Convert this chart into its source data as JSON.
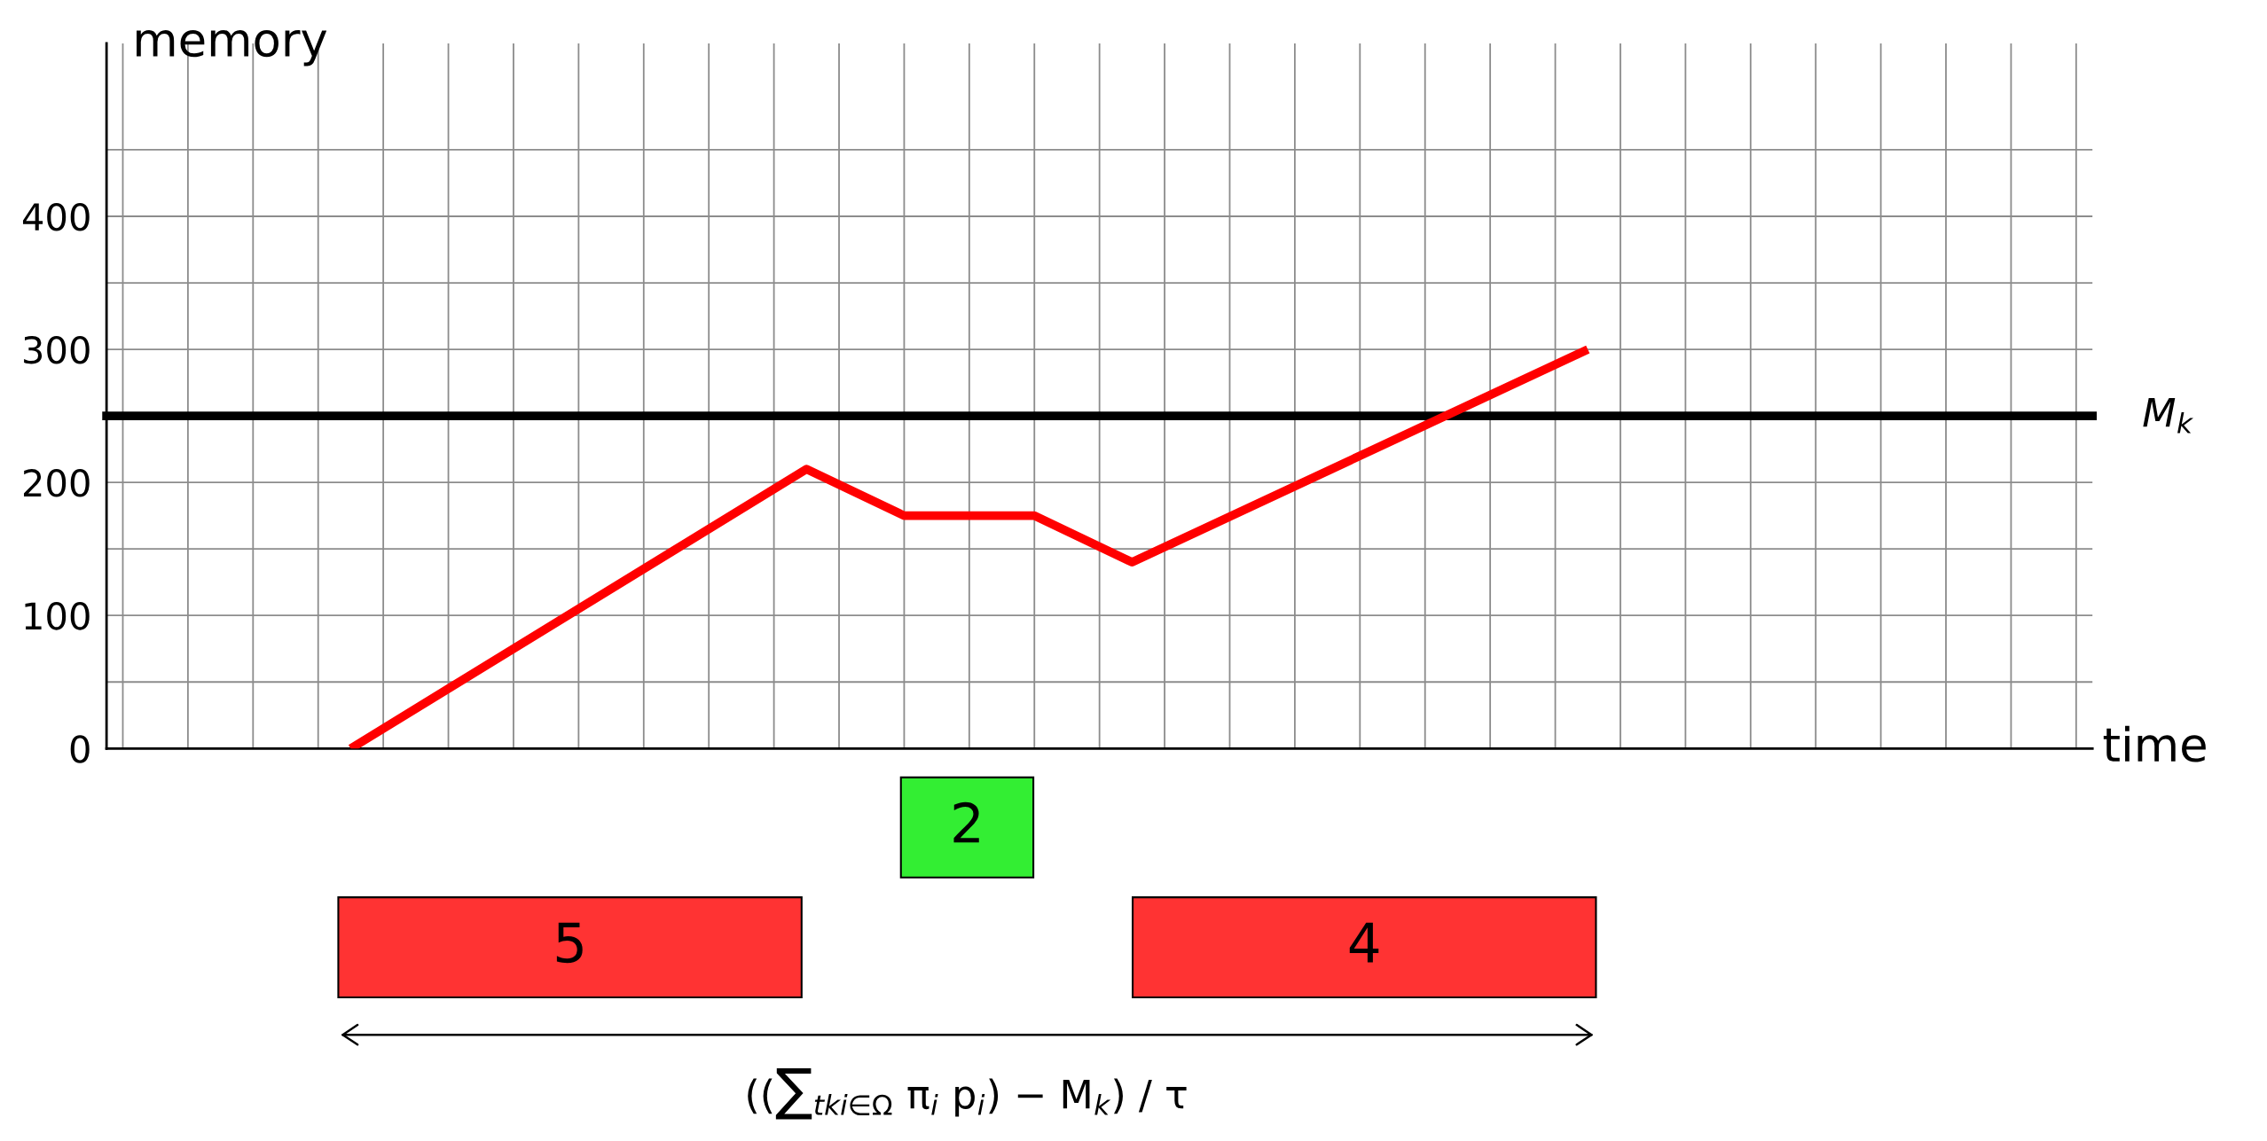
{
  "chart_data": {
    "type": "line",
    "xlabel": "time",
    "ylabel": "memory",
    "categories": [
      null,
      null,
      null,
      null,
      null,
      null,
      null,
      null,
      null,
      null,
      null,
      null,
      null,
      null,
      null,
      null,
      null,
      null,
      null,
      null,
      null,
      null,
      null,
      null,
      null,
      null,
      null,
      null,
      null,
      null,
      null,
      null,
      null,
      null,
      null,
      null,
      null,
      null,
      null,
      null,
      null,
      null,
      null,
      null,
      null,
      null,
      null,
      null,
      null,
      null,
      null,
      null,
      null,
      null,
      null,
      null,
      null,
      null,
      null,
      null,
      null
    ],
    "series": [
      {
        "color": "#ff0000",
        "values": [
          null,
          null,
          null,
          null,
          null,
          null,
          null,
          0,
          null,
          null,
          null,
          null,
          null,
          null,
          null,
          null,
          null,
          null,
          null,
          null,
          null,
          210,
          null,
          null,
          175,
          null,
          null,
          null,
          175,
          null,
          null,
          140,
          null,
          null,
          null,
          null,
          null,
          null,
          null,
          null,
          null,
          null,
          null,
          null,
          null,
          300,
          null,
          null,
          null,
          null,
          null,
          null,
          null,
          null,
          null,
          null,
          null,
          null,
          null,
          null,
          null
        ]
      }
    ],
    "ylim": [
      0,
      530
    ],
    "yticks": [
      0,
      {
        "value": 50,
        "label": null
      },
      100,
      {
        "value": 150,
        "label": null
      },
      200,
      {
        "value": 250,
        "label": null
      },
      300,
      {
        "value": 350,
        "label": null
      },
      400,
      {
        "value": 450,
        "label": null
      }
    ],
    "grid": true,
    "marker": "none",
    "line_style": "solid",
    "ref_lines": [
      {
        "axis": "y",
        "value": 250,
        "label": "M$_{k}$",
        "color": "#000000"
      }
    ],
    "annotations": [
      "2",
      "5",
      "4",
      "((∑$_{tki∈Ω}$ π$_{i}$ p$_{i}$) − M$_{k}$) / τ"
    ]
  }
}
